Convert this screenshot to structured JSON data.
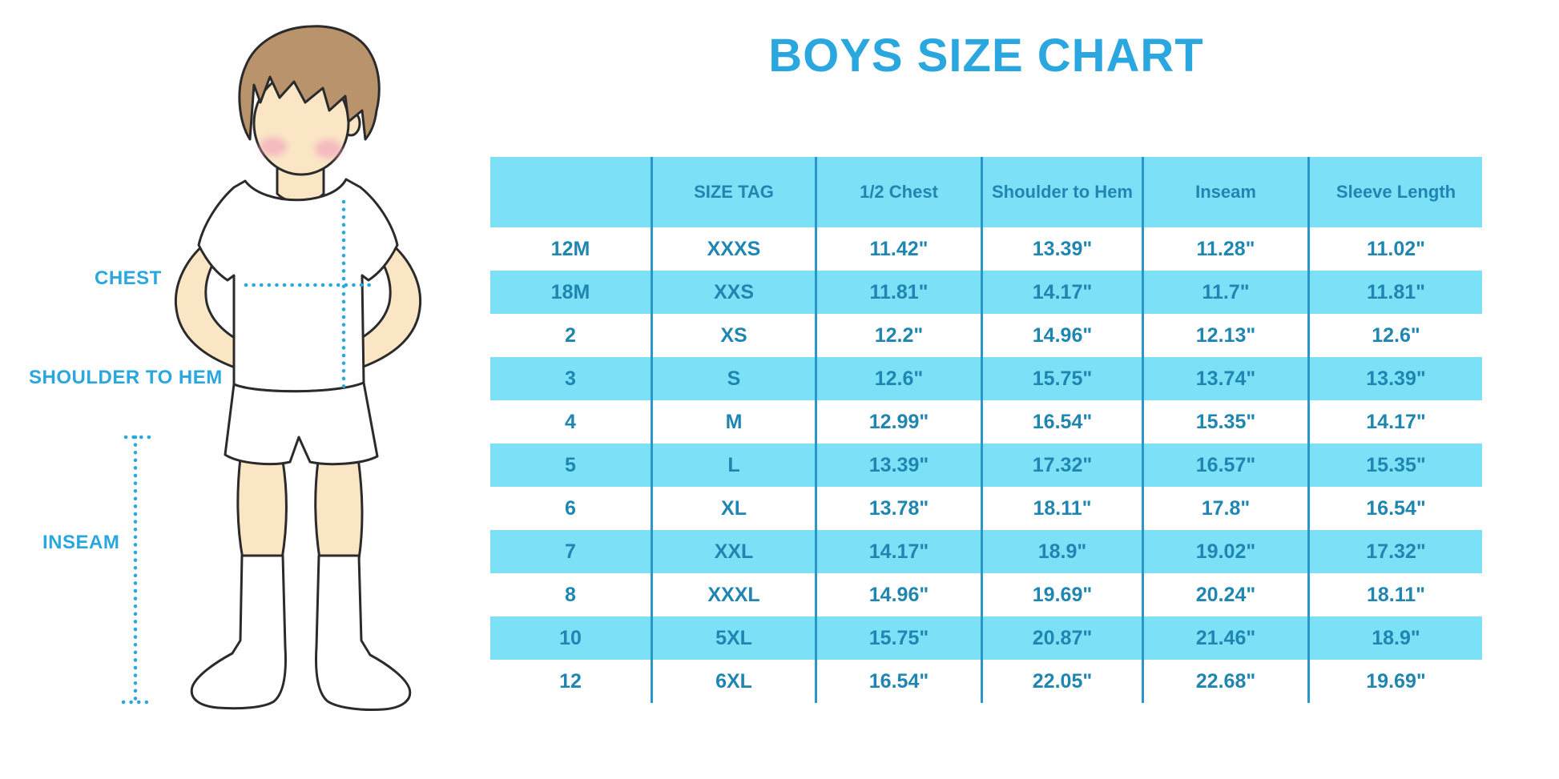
{
  "page": {
    "title": "BOYS SIZE CHART"
  },
  "colors": {
    "accent": "#29A7DE",
    "table_text": "#1F86B2",
    "stripe": "#7CE0F7",
    "divider": "#2A97C9",
    "skin": "#FAE6C5",
    "hair": "#B8936B",
    "cheek": "#F2A9BE"
  },
  "diagram": {
    "description": "cartoon boy in white t-shirt, shorts and knee socks with dotted measurement guides",
    "labels": [
      {
        "id": "chest",
        "text": "CHEST"
      },
      {
        "id": "shoulder-to-hem",
        "text": "SHOULDER TO HEM"
      },
      {
        "id": "inseam",
        "text": "INSEAM"
      }
    ]
  },
  "chart_data": {
    "type": "table",
    "title": "BOYS SIZE CHART",
    "headers": [
      "",
      "SIZE TAG",
      "1/2 Chest",
      "Shoulder to Hem",
      "Inseam",
      "Sleeve Length"
    ],
    "rows": [
      [
        "12M",
        "XXXS",
        "11.42\"",
        "13.39\"",
        "11.28\"",
        "11.02\""
      ],
      [
        "18M",
        "XXS",
        "11.81\"",
        "14.17\"",
        "11.7\"",
        "11.81\""
      ],
      [
        "2",
        "XS",
        "12.2\"",
        "14.96\"",
        "12.13\"",
        "12.6\""
      ],
      [
        "3",
        "S",
        "12.6\"",
        "15.75\"",
        "13.74\"",
        "13.39\""
      ],
      [
        "4",
        "M",
        "12.99\"",
        "16.54\"",
        "15.35\"",
        "14.17\""
      ],
      [
        "5",
        "L",
        "13.39\"",
        "17.32\"",
        "16.57\"",
        "15.35\""
      ],
      [
        "6",
        "XL",
        "13.78\"",
        "18.11\"",
        "17.8\"",
        "16.54\""
      ],
      [
        "7",
        "XXL",
        "14.17\"",
        "18.9\"",
        "19.02\"",
        "17.32\""
      ],
      [
        "8",
        "XXXL",
        "14.96\"",
        "19.69\"",
        "20.24\"",
        "18.11\""
      ],
      [
        "10",
        "5XL",
        "15.75\"",
        "20.87\"",
        "21.46\"",
        "18.9\""
      ],
      [
        "12",
        "6XL",
        "16.54\"",
        "22.05\"",
        "22.68\"",
        "19.69\""
      ]
    ],
    "layout": {
      "stripe_pattern": "header and every second data row filled light blue",
      "gridlines": "vertical column dividers only"
    }
  }
}
